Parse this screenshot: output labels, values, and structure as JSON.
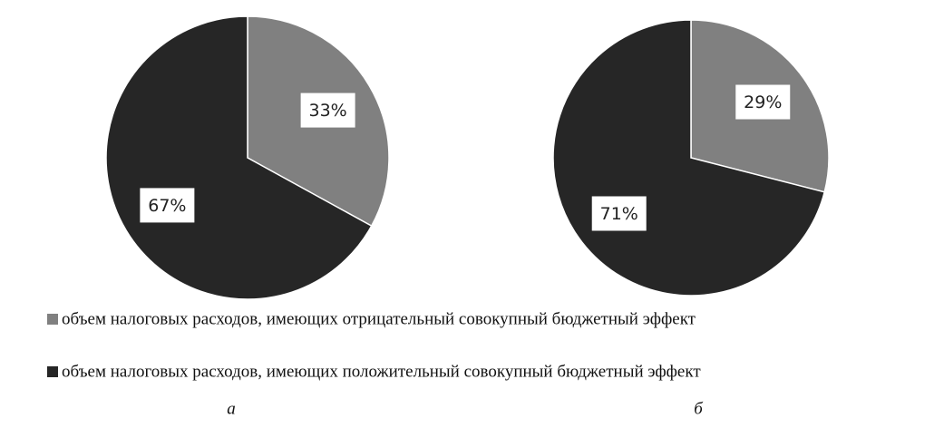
{
  "chart_data": [
    {
      "type": "pie",
      "values": [
        33,
        67
      ],
      "value_labels": [
        "33%",
        "67%"
      ],
      "caption": "а"
    },
    {
      "type": "pie",
      "values": [
        29,
        71
      ],
      "value_labels": [
        "29%",
        "71%"
      ],
      "caption": "б"
    }
  ],
  "legend": {
    "entries": [
      {
        "name": "объем налоговых расходов, имеющих отрицательный совокупный бюджетный эффект",
        "color": "#808080"
      },
      {
        "name": "объем налоговых расходов, имеющих положительный совокупный бюджетный эффект",
        "color": "#262626"
      }
    ]
  }
}
